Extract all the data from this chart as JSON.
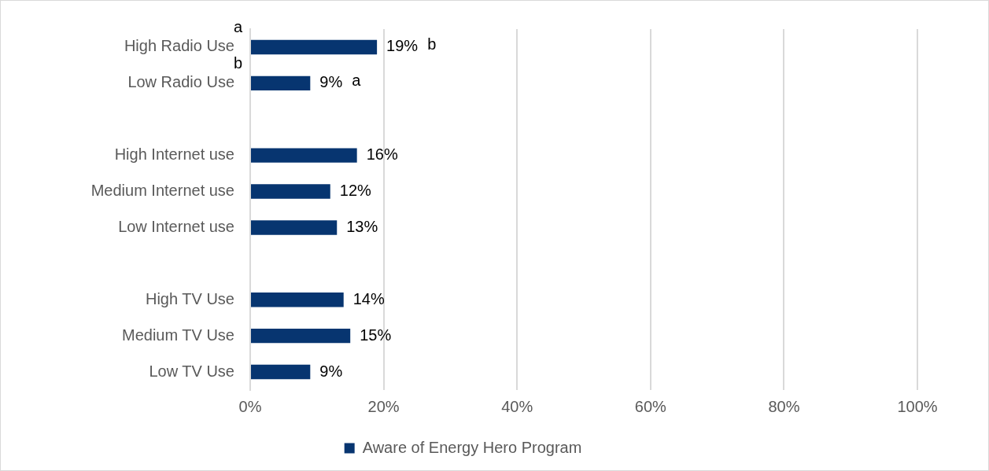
{
  "chart_data": {
    "type": "bar",
    "orientation": "horizontal",
    "categories": [
      "High Radio Use",
      "Low Radio Use",
      null,
      "High Internet use",
      "Medium Internet use",
      "Low Internet use",
      null,
      "High TV Use",
      "Medium TV Use",
      "Low TV Use"
    ],
    "series": [
      {
        "name": "Aware of Energy Hero Program",
        "color": "#073570",
        "values": [
          19,
          9,
          null,
          16,
          12,
          13,
          null,
          14,
          15,
          9
        ]
      }
    ],
    "value_labels": [
      "19%",
      "9%",
      null,
      "16%",
      "12%",
      "13%",
      null,
      "14%",
      "15%",
      "9%"
    ],
    "xlim": [
      0,
      100
    ],
    "xticks": [
      {
        "value": 0,
        "label": "0%"
      },
      {
        "value": 20,
        "label": "20%"
      },
      {
        "value": 40,
        "label": "40%"
      },
      {
        "value": 60,
        "label": "60%"
      },
      {
        "value": 80,
        "label": "80%"
      },
      {
        "value": 100,
        "label": "100%"
      }
    ],
    "grid": "x",
    "legend": "bottom",
    "annotations": [
      "a",
      "b",
      "b",
      "a"
    ]
  }
}
